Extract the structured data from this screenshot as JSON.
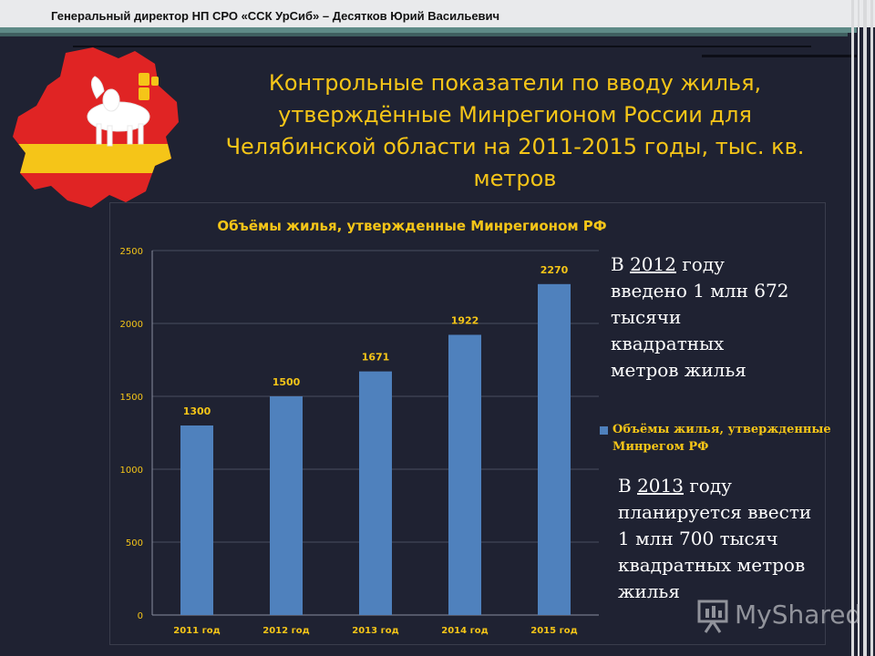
{
  "header": {
    "text": "Генеральный директор НП СРО «ССК УрСиб» – Десятков Юрий Васильевич"
  },
  "slide": {
    "title": "Контрольные показатели по вводу жилья, утверждённые Минрегионом России для Челябинской области на 2011-2015 годы, тыс. кв. метров"
  },
  "notes": {
    "n2012": {
      "before": "В ",
      "year": "2012",
      "after": " году введено 1 млн 672 тысячи квадратных метров жилья"
    },
    "n2013": {
      "before": "В ",
      "year": "2013",
      "after": " году планируется ввести 1 млн 700 тысяч квадратных метров жилья"
    }
  },
  "legend": {
    "label": "Объёмы жилья, утвержденные Минрегом РФ"
  },
  "watermark": {
    "text": "MyShared",
    "icon": "presentation-board-icon"
  },
  "emblem": {
    "icon": "chelyabinsk-region-coat-of-arms-icon"
  },
  "colors": {
    "bar": "#4f81bd",
    "title": "#f5c518",
    "background": "#1f2232"
  },
  "chart_data": {
    "type": "bar",
    "title": "Объёмы жилья, утвержденные Минрегионом РФ",
    "categories": [
      "2011 год",
      "2012 год",
      "2013 год",
      "2014 год",
      "2015 год"
    ],
    "values": [
      1300,
      1500,
      1671,
      1922,
      2270
    ],
    "yticks": [
      0,
      500,
      1000,
      1500,
      2000,
      2500
    ],
    "ylim": [
      0,
      2500
    ],
    "grid": true,
    "legend_position": "right"
  }
}
